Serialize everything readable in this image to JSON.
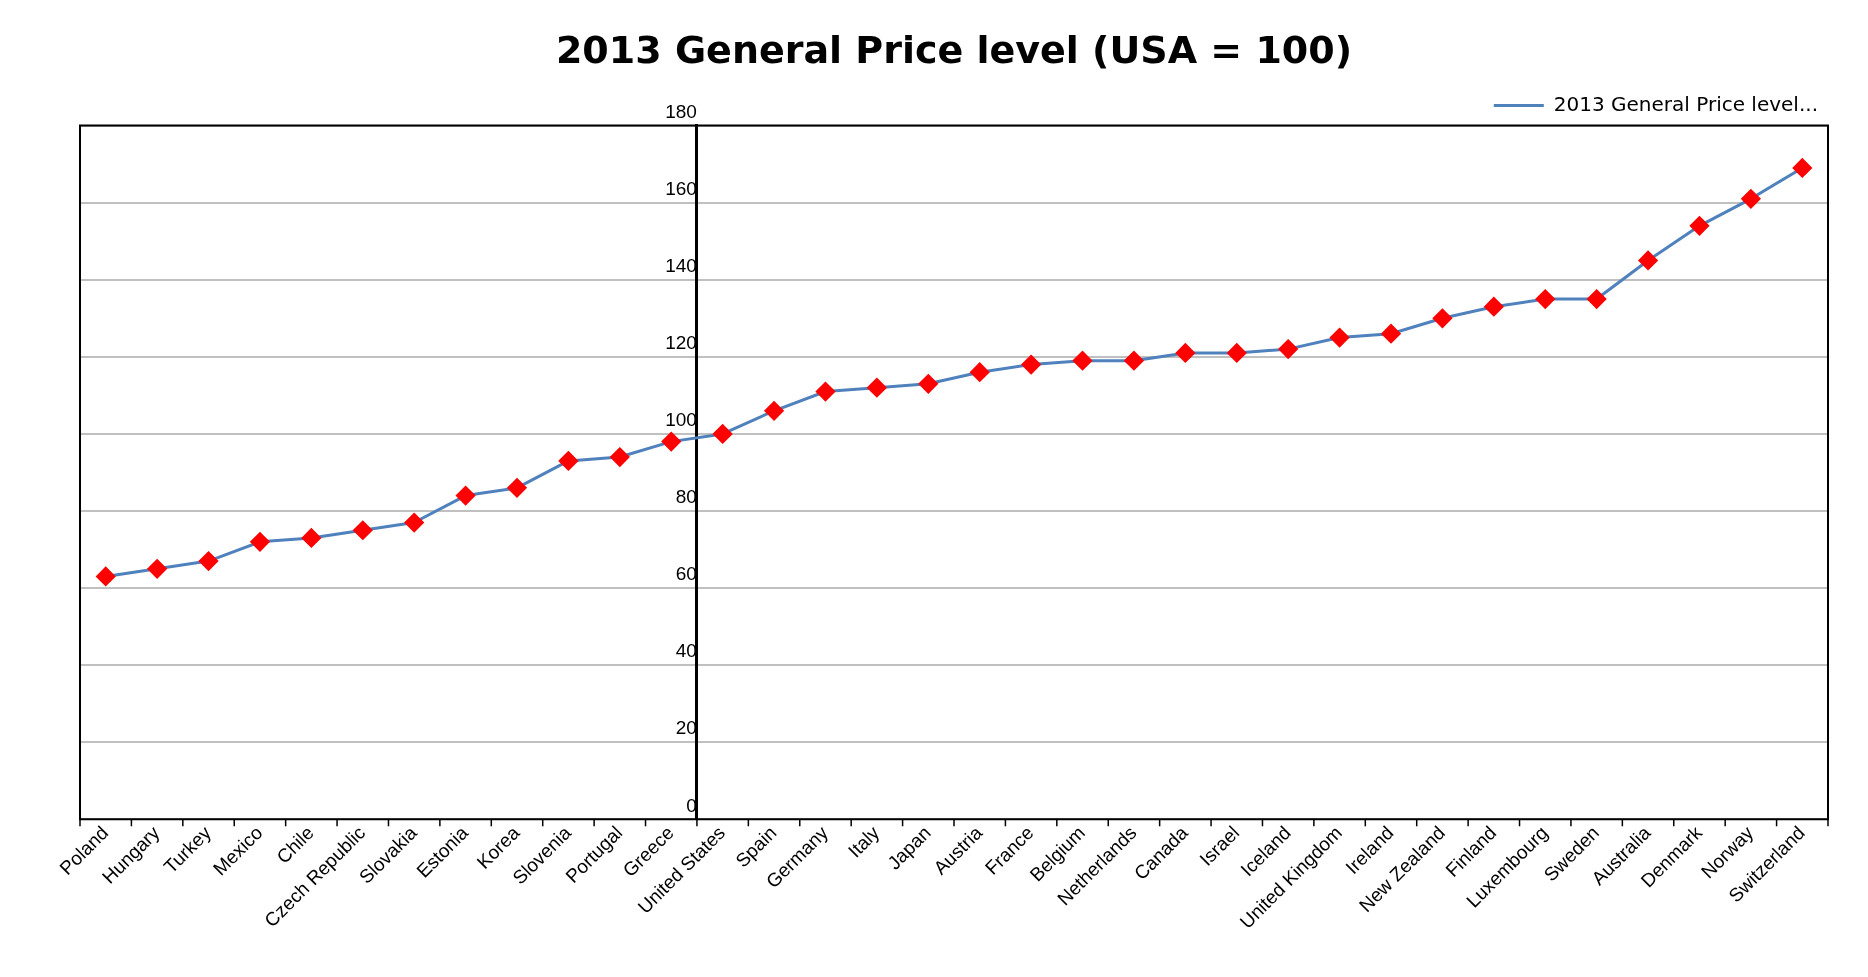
{
  "chart_data": {
    "type": "line",
    "title": "2013 General Price level (USA = 100)",
    "categories": [
      "Poland",
      "Hungary",
      "Turkey",
      "Mexico",
      "Chile",
      "Czech Republic",
      "Slovakia",
      "Estonia",
      "Korea",
      "Slovenia",
      "Portugal",
      "Greece",
      "United States",
      "Spain",
      "Germany",
      "Italy",
      "Japan",
      "Austria",
      "France",
      "Belgium",
      "Netherlands",
      "Canada",
      "Israel",
      "Iceland",
      "United Kingdom",
      "Ireland",
      "New Zealand",
      "Finland",
      "Luxembourg",
      "Sweden",
      "Australia",
      "Denmark",
      "Norway",
      "Switzerland"
    ],
    "series": [
      {
        "name": "2013 General Price level...",
        "color": "#4f81bd",
        "values": [
          63,
          65,
          67,
          72,
          73,
          75,
          77,
          84,
          86,
          93,
          94,
          98,
          100,
          106,
          111,
          112,
          113,
          116,
          118,
          119,
          119,
          121,
          121,
          122,
          125,
          126,
          130,
          133,
          135,
          135,
          145,
          154,
          161,
          169
        ]
      }
    ],
    "ylim": [
      0,
      180
    ],
    "yticks": [
      0,
      20,
      40,
      60,
      80,
      100,
      120,
      140,
      160,
      180
    ],
    "grid": "y",
    "legend": "top right",
    "marker": "diamond",
    "line_style": "solid"
  }
}
